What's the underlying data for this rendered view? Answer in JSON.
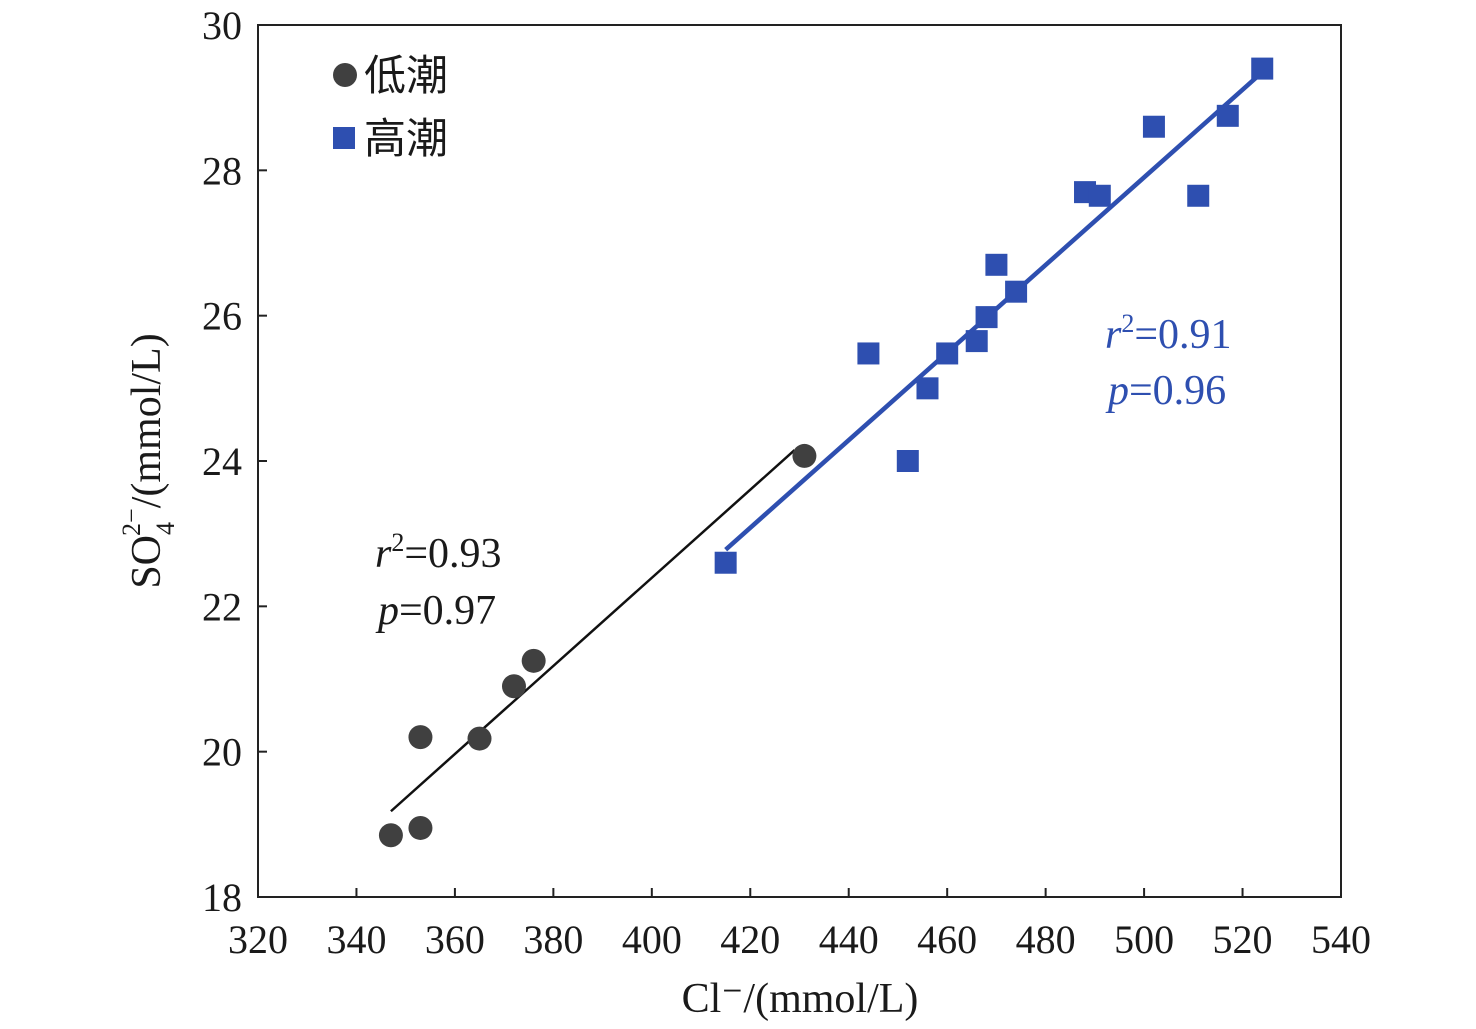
{
  "chart_data": {
    "type": "scatter",
    "xlabel": "Cl⁻/(mmol/L)",
    "ylabel_prefix": "SO",
    "ylabel_sub": "4",
    "ylabel_sup": "2−",
    "ylabel_suffix": "/(mmol/L)",
    "xlim": [
      320,
      540
    ],
    "ylim": [
      18,
      30
    ],
    "xticks": [
      320,
      340,
      360,
      380,
      400,
      420,
      440,
      460,
      480,
      500,
      520,
      540
    ],
    "yticks": [
      18,
      20,
      22,
      24,
      26,
      28,
      30
    ],
    "grid": false,
    "legend_position": "top-left",
    "series": [
      {
        "name": "低潮",
        "marker": "circle",
        "color": "#404040",
        "points": [
          [
            347,
            18.85
          ],
          [
            353,
            18.95
          ],
          [
            353,
            20.2
          ],
          [
            365,
            20.18
          ],
          [
            372,
            20.9
          ],
          [
            376,
            21.25
          ],
          [
            431,
            24.07
          ]
        ],
        "fit": {
          "x": [
            347,
            429
          ],
          "y": [
            19.18,
            24.15
          ],
          "color": "#111111"
        },
        "annotation": {
          "r_symbol": "r",
          "r_sup": "2",
          "r_value": "=0.93",
          "p_symbol": "p",
          "p_value": "=0.97"
        }
      },
      {
        "name": "高潮",
        "marker": "square",
        "color": "#2e4fb0",
        "points": [
          [
            415,
            22.6
          ],
          [
            444,
            25.48
          ],
          [
            452,
            24.0
          ],
          [
            456,
            25.0
          ],
          [
            460,
            25.48
          ],
          [
            466,
            25.65
          ],
          [
            468,
            25.98
          ],
          [
            470,
            26.7
          ],
          [
            474,
            26.33
          ],
          [
            488,
            27.7
          ],
          [
            491,
            27.65
          ],
          [
            502,
            28.6
          ],
          [
            511,
            27.65
          ],
          [
            517,
            28.75
          ],
          [
            524,
            29.4
          ]
        ],
        "fit": {
          "x": [
            415,
            524
          ],
          "y": [
            22.78,
            29.35
          ],
          "color": "#2e4fb0"
        },
        "annotation": {
          "r_symbol": "r",
          "r_sup": "2",
          "r_value": "=0.91",
          "p_symbol": "p",
          "p_value": "=0.96"
        }
      }
    ]
  }
}
